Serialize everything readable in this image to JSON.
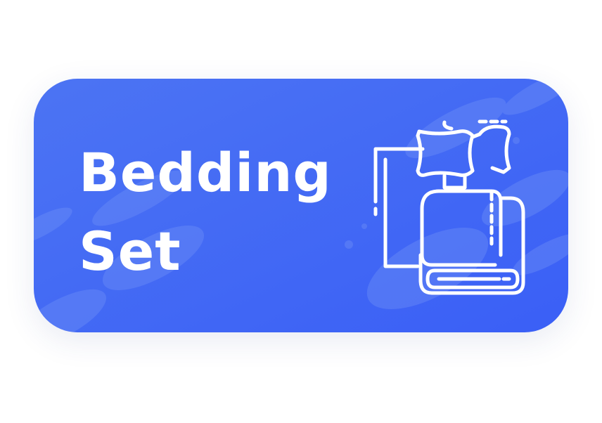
{
  "card": {
    "title_line1": "Bedding",
    "title_line2": "Set",
    "icon": "bedding-set-icon"
  },
  "colors": {
    "gradient_start": "#4A72F4",
    "gradient_end": "#3B62F6",
    "text": "#FFFFFF",
    "accent_shape": "#6C8EF7"
  }
}
